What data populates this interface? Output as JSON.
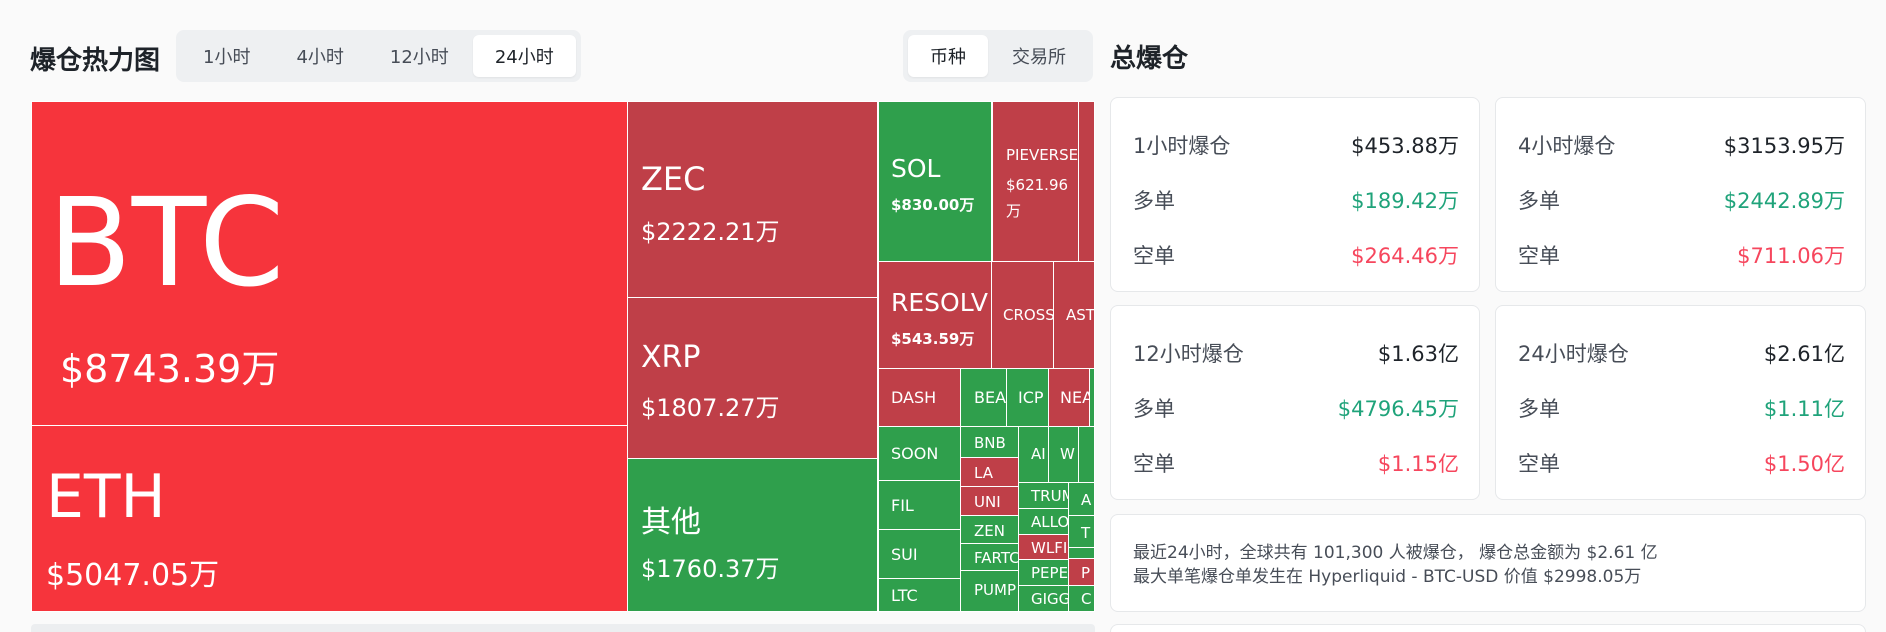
{
  "heatmap": {
    "title": "爆仓热力图",
    "time_tabs": [
      "1小时",
      "4小时",
      "12小时",
      "24小时"
    ],
    "active_time_tab": "24小时",
    "type_tabs": [
      "币种",
      "交易所"
    ],
    "active_type_tab": "币种",
    "tiles": [
      {
        "symbol": "BTC",
        "value": "$8743.39万",
        "side": "short"
      },
      {
        "symbol": "ETH",
        "value": "$5047.05万",
        "side": "short"
      },
      {
        "symbol": "ZEC",
        "value": "$2222.21万",
        "side": "short"
      },
      {
        "symbol": "XRP",
        "value": "$1807.27万",
        "side": "short"
      },
      {
        "symbol": "其他",
        "value": "$1760.37万",
        "side": "long"
      },
      {
        "symbol": "SOL",
        "value": "$830.00万",
        "side": "long"
      },
      {
        "symbol": "PIEVERSE",
        "value": "$621.96万",
        "side": "short"
      },
      {
        "symbol": "RESOLV",
        "value": "$543.59万",
        "side": "short"
      },
      {
        "symbol": "CROSS",
        "value": "",
        "side": "short"
      },
      {
        "symbol": "AST",
        "value": "",
        "side": "short"
      },
      {
        "symbol": "DASH",
        "value": "",
        "side": "short"
      },
      {
        "symbol": "BEA",
        "value": "",
        "side": "long"
      },
      {
        "symbol": "ICP",
        "value": "",
        "side": "long"
      },
      {
        "symbol": "NEA",
        "value": "",
        "side": "short"
      },
      {
        "symbol": "SOON",
        "value": "",
        "side": "long"
      },
      {
        "symbol": "BNB",
        "value": "",
        "side": "long"
      },
      {
        "symbol": "LA",
        "value": "",
        "side": "short"
      },
      {
        "symbol": "UNI",
        "value": "",
        "side": "short"
      },
      {
        "symbol": "ZEN",
        "value": "",
        "side": "long"
      },
      {
        "symbol": "FARTC",
        "value": "",
        "side": "long"
      },
      {
        "symbol": "PUMP",
        "value": "",
        "side": "long"
      },
      {
        "symbol": "FIL",
        "value": "",
        "side": "long"
      },
      {
        "symbol": "SUI",
        "value": "",
        "side": "long"
      },
      {
        "symbol": "LTC",
        "value": "",
        "side": "long"
      },
      {
        "symbol": "AI",
        "value": "",
        "side": "long"
      },
      {
        "symbol": "W",
        "value": "",
        "side": "long"
      },
      {
        "symbol": "TRUM",
        "value": "",
        "side": "long"
      },
      {
        "symbol": "ALLO",
        "value": "",
        "side": "long"
      },
      {
        "symbol": "WLFI",
        "value": "",
        "side": "short"
      },
      {
        "symbol": "PEPE",
        "value": "",
        "side": "long"
      },
      {
        "symbol": "GIGG",
        "value": "",
        "side": "long"
      },
      {
        "symbol": "A",
        "value": "",
        "side": "long"
      },
      {
        "symbol": "T",
        "value": "",
        "side": "long"
      },
      {
        "symbol": "P",
        "value": "",
        "side": "short"
      },
      {
        "symbol": "C",
        "value": "",
        "side": "long"
      }
    ]
  },
  "totals": {
    "title": "总爆仓",
    "long_label": "多单",
    "short_label": "空单",
    "cards": [
      {
        "label": "1小时爆仓",
        "total": "$453.88万",
        "long": "$189.42万",
        "short": "$264.46万"
      },
      {
        "label": "4小时爆仓",
        "total": "$3153.95万",
        "long": "$2442.89万",
        "short": "$711.06万"
      },
      {
        "label": "12小时爆仓",
        "total": "$1.63亿",
        "long": "$4796.45万",
        "short": "$1.15亿"
      },
      {
        "label": "24小时爆仓",
        "total": "$2.61亿",
        "long": "$1.11亿",
        "short": "$1.50亿"
      }
    ],
    "summary_line1": "最近24小时，全球共有 101,300 人被爆仓， 爆仓总金额为 $2.61 亿",
    "summary_line2": "最大单笔爆仓单发生在 Hyperliquid - BTC-USD 价值 $2998.05万"
  },
  "colors": {
    "short_big": "#f6343c",
    "short": "#bf3f48",
    "long": "#2f9f4c",
    "long_text": "#1fa37a",
    "short_text": "#f6465d"
  }
}
